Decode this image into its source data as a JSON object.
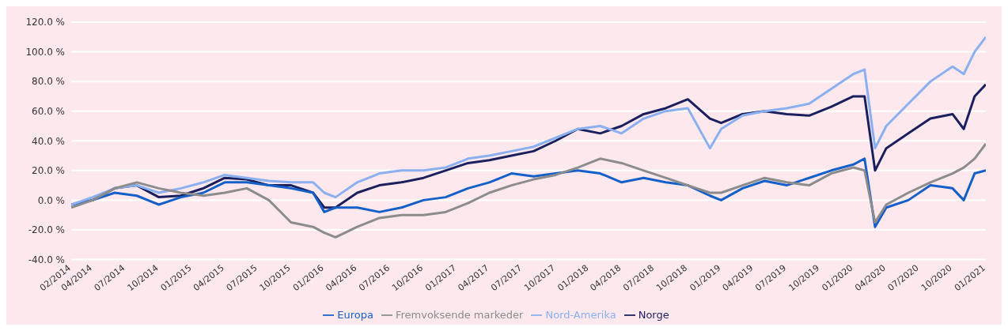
{
  "chart_data": {
    "type": "line",
    "x": [
      "2014-02",
      "2014-04",
      "2014-06",
      "2014-08",
      "2014-10",
      "2014-12",
      "2015-02",
      "2015-04",
      "2015-06",
      "2015-08",
      "2015-10",
      "2015-12",
      "2016-01",
      "2016-02",
      "2016-04",
      "2016-06",
      "2016-08",
      "2016-10",
      "2016-12",
      "2017-02",
      "2017-04",
      "2017-06",
      "2017-08",
      "2017-10",
      "2017-12",
      "2018-02",
      "2018-04",
      "2018-06",
      "2018-08",
      "2018-10",
      "2018-12",
      "2019-01",
      "2019-03",
      "2019-05",
      "2019-07",
      "2019-09",
      "2019-11",
      "2020-01",
      "2020-02",
      "2020-03",
      "2020-04",
      "2020-06",
      "2020-08",
      "2020-10",
      "2020-11",
      "2020-12",
      "2021-01"
    ],
    "series": [
      {
        "name": "Norge",
        "color": "#1a1f5e",
        "values": [
          -3,
          0,
          8,
          10,
          2,
          3,
          8,
          15,
          14,
          10,
          10,
          5,
          -5,
          -5,
          5,
          10,
          12,
          15,
          20,
          25,
          27,
          30,
          33,
          40,
          48,
          45,
          50,
          58,
          62,
          68,
          55,
          52,
          58,
          60,
          58,
          57,
          63,
          70,
          70,
          20,
          35,
          45,
          55,
          58,
          48,
          70,
          78
        ]
      },
      {
        "name": "Europa",
        "color": "#1560c8",
        "values": [
          -3,
          0,
          5,
          3,
          -3,
          2,
          5,
          12,
          12,
          10,
          8,
          5,
          -8,
          -5,
          -5,
          -8,
          -5,
          0,
          2,
          8,
          12,
          18,
          16,
          18,
          20,
          18,
          12,
          15,
          12,
          10,
          3,
          0,
          8,
          13,
          10,
          15,
          20,
          24,
          28,
          -18,
          -5,
          0,
          10,
          8,
          0,
          18,
          20
        ]
      },
      {
        "name": "Nord-Amerika",
        "color": "#8ab0f0",
        "values": [
          -3,
          2,
          8,
          10,
          5,
          8,
          12,
          17,
          15,
          13,
          12,
          12,
          5,
          2,
          12,
          18,
          20,
          20,
          22,
          28,
          30,
          33,
          36,
          42,
          48,
          50,
          45,
          55,
          60,
          62,
          35,
          48,
          57,
          60,
          62,
          65,
          75,
          85,
          88,
          35,
          50,
          65,
          80,
          90,
          85,
          100,
          110
        ]
      },
      {
        "name": "Fremvoksende markeder",
        "color": "#8c8c8c",
        "values": [
          -5,
          0,
          8,
          12,
          8,
          5,
          3,
          5,
          8,
          0,
          -15,
          -18,
          -22,
          -25,
          -18,
          -12,
          -10,
          -10,
          -8,
          -2,
          5,
          10,
          14,
          17,
          22,
          28,
          25,
          20,
          15,
          10,
          5,
          5,
          10,
          15,
          12,
          10,
          18,
          22,
          20,
          -15,
          -3,
          5,
          12,
          18,
          22,
          28,
          38
        ]
      }
    ],
    "xlim": [
      "2014-02",
      "2021-01"
    ],
    "xticks": [
      {
        "value": "2014-02",
        "label": "02/2014"
      },
      {
        "value": "2014-04",
        "label": "04/2014"
      },
      {
        "value": "2014-07",
        "label": "07/2014"
      },
      {
        "value": "2014-10",
        "label": "10/2014"
      },
      {
        "value": "2015-01",
        "label": "01/2015"
      },
      {
        "value": "2015-04",
        "label": "04/2015"
      },
      {
        "value": "2015-07",
        "label": "07/2015"
      },
      {
        "value": "2015-10",
        "label": "10/2015"
      },
      {
        "value": "2016-01",
        "label": "01/2016"
      },
      {
        "value": "2016-04",
        "label": "04/2016"
      },
      {
        "value": "2016-07",
        "label": "07/2016"
      },
      {
        "value": "2016-10",
        "label": "10/2016"
      },
      {
        "value": "2017-01",
        "label": "01/2017"
      },
      {
        "value": "2017-04",
        "label": "04/2017"
      },
      {
        "value": "2017-07",
        "label": "07/2017"
      },
      {
        "value": "2017-10",
        "label": "10/2017"
      },
      {
        "value": "2018-01",
        "label": "01/2018"
      },
      {
        "value": "2018-04",
        "label": "04/2018"
      },
      {
        "value": "2018-07",
        "label": "07/2018"
      },
      {
        "value": "2018-10",
        "label": "10/2018"
      },
      {
        "value": "2019-01",
        "label": "01/2019"
      },
      {
        "value": "2019-04",
        "label": "04/2019"
      },
      {
        "value": "2019-07",
        "label": "07/2019"
      },
      {
        "value": "2019-10",
        "label": "10/2019"
      },
      {
        "value": "2020-01",
        "label": "01/2020"
      },
      {
        "value": "2020-04",
        "label": "04/2020"
      },
      {
        "value": "2020-07",
        "label": "07/2020"
      },
      {
        "value": "2020-10",
        "label": "10/2020"
      },
      {
        "value": "2021-01",
        "label": "01/2021"
      }
    ],
    "ylim": [
      -40,
      120
    ],
    "yticks": [
      {
        "value": -40,
        "label": "-40.0 %"
      },
      {
        "value": -20,
        "label": "-20.0 %"
      },
      {
        "value": 0,
        "label": "0.0 %"
      },
      {
        "value": 20,
        "label": "20.0 %"
      },
      {
        "value": 40,
        "label": "40.0 %"
      },
      {
        "value": 60,
        "label": "60.0 %"
      },
      {
        "value": 80,
        "label": "80.0 %"
      },
      {
        "value": 100,
        "label": "100.0 %"
      },
      {
        "value": 120,
        "label": "120.0 %"
      }
    ],
    "grid": "y",
    "legend": "bottom",
    "marker": "none",
    "line_style": "solid"
  }
}
